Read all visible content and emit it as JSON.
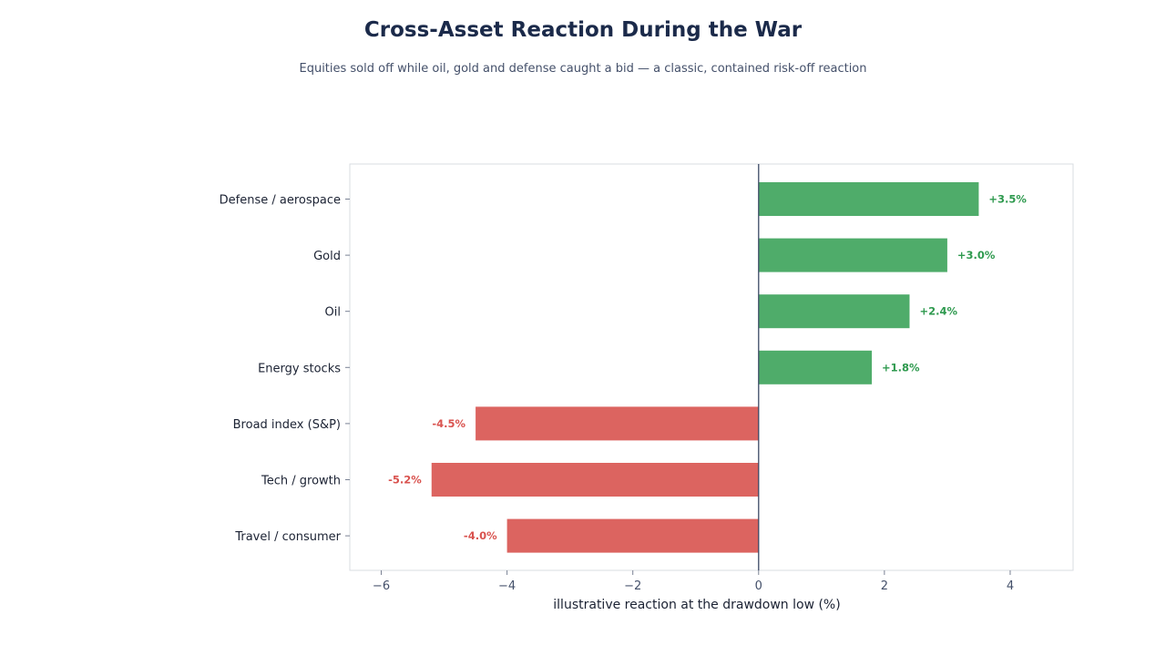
{
  "chart_data": {
    "type": "bar",
    "orientation": "horizontal",
    "title": "Cross-Asset Reaction During the War",
    "subtitle": "Equities sold off while oil, gold and defense caught a bid — a classic, contained risk-off reaction",
    "xlabel": "illustrative reaction at the drawdown low (%)",
    "ylabel": "",
    "xlim": [
      -6.5,
      5
    ],
    "xticks": [
      -6,
      -4,
      -2,
      0,
      2,
      4
    ],
    "xtick_labels": [
      "−6",
      "−4",
      "−2",
      "0",
      "2",
      "4"
    ],
    "categories": [
      "Defense / aerospace",
      "Gold",
      "Oil",
      "Energy stocks",
      "Broad index (S&P)",
      "Tech / growth",
      "Travel / consumer"
    ],
    "values": [
      3.5,
      3.0,
      2.4,
      1.8,
      -4.5,
      -5.2,
      -4.0
    ],
    "data_labels": [
      "+3.5%",
      "+3.0%",
      "+2.4%",
      "+1.8%",
      "-4.5%",
      "-5.2%",
      "-4.0%"
    ],
    "grid": false,
    "legend": "none",
    "colors": {
      "positive_bar": "#4fac6a",
      "negative_bar": "#dc6460",
      "positive_label": "#2f9a4f",
      "negative_label": "#d9534f",
      "zero_line": "#3c4a66",
      "frame": "#d9dce2",
      "title": "#1b2a4a"
    }
  }
}
